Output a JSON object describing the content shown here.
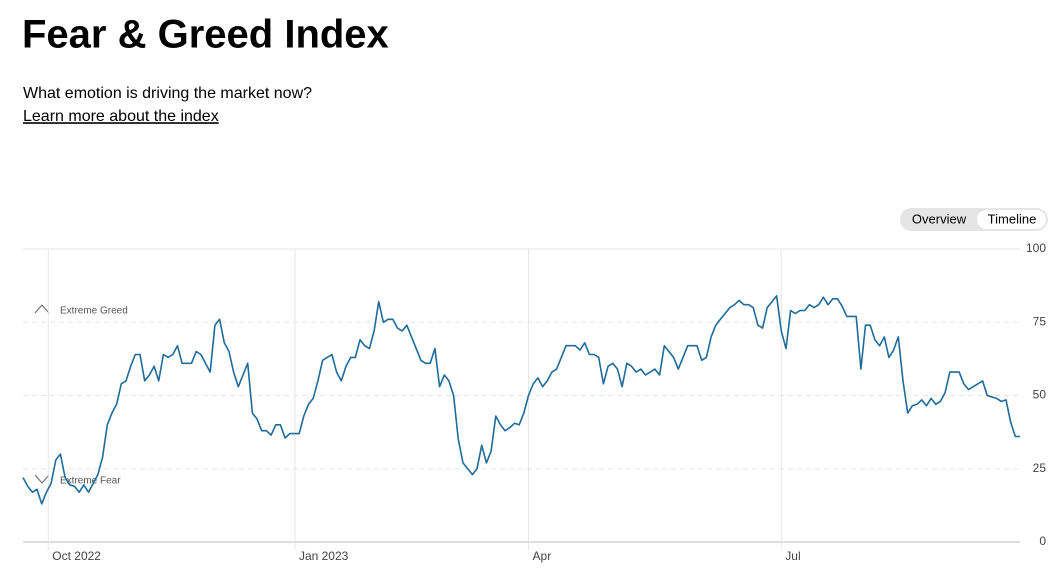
{
  "header": {
    "title": "Fear & Greed Index",
    "subtitle": "What emotion is driving the market now?",
    "link": "Learn more about the index"
  },
  "toggle": {
    "options": [
      "Overview",
      "Timeline"
    ],
    "selected": "Timeline"
  },
  "chart_data": {
    "type": "line",
    "color": "#1f6b9a",
    "grid": true,
    "annotations": [
      "Extreme Greed",
      "Extreme Fear"
    ],
    "xlim": [
      0,
      213
    ],
    "xticks": [
      {
        "value": 5.4,
        "label": "Oct 2022"
      },
      {
        "value": 58.1,
        "label": "Jan 2023"
      },
      {
        "value": 108,
        "label": "Apr"
      },
      {
        "value": 162,
        "label": "Jul"
      }
    ],
    "ylim": [
      0,
      100
    ],
    "yticks": [
      0,
      25,
      50,
      75,
      100
    ],
    "values": [
      22,
      19,
      17,
      18,
      13,
      17,
      20,
      28,
      30,
      22,
      19.5,
      19,
      17,
      19.5,
      17,
      20,
      23,
      29,
      40,
      44,
      47,
      54,
      55,
      60,
      64,
      64,
      55,
      57,
      60,
      55,
      64,
      63,
      64,
      67,
      61,
      61,
      61,
      65,
      64,
      61,
      58,
      74,
      76,
      68,
      65,
      58,
      53,
      57,
      61,
      44,
      42,
      38,
      38,
      36.5,
      40,
      40,
      35.5,
      37,
      37,
      37,
      43,
      47,
      49,
      55,
      62,
      63,
      64,
      58,
      55,
      60,
      63,
      63,
      69,
      67,
      66,
      72,
      82,
      75,
      76,
      76,
      73,
      72,
      74,
      70,
      66,
      62,
      61,
      61,
      66,
      53,
      57,
      55,
      50,
      35,
      27,
      25,
      23,
      25,
      33,
      27,
      31,
      43,
      40,
      38,
      39,
      40.5,
      40,
      44,
      50,
      54,
      56,
      53,
      55,
      58,
      59,
      63,
      67,
      67,
      67,
      65.5,
      68,
      64,
      64,
      63,
      54,
      60,
      61,
      59,
      53,
      61,
      60,
      58,
      59,
      57,
      58,
      59,
      57,
      67,
      65,
      63,
      59,
      63,
      67,
      67,
      67,
      62,
      63,
      70,
      74,
      76,
      78,
      80,
      81,
      82.5,
      81,
      81,
      80,
      74,
      73,
      80,
      82,
      84,
      72,
      66,
      79,
      78,
      79,
      79,
      81,
      80,
      81,
      83.5,
      81,
      83,
      83,
      80.5,
      77,
      77,
      77,
      59,
      74,
      74,
      69,
      67,
      70,
      63,
      65.5,
      70,
      55,
      44,
      46.5,
      47,
      48.5,
      46.5,
      49,
      47,
      48,
      51,
      58,
      58,
      58,
      54,
      52,
      53,
      54,
      55,
      50,
      49.5,
      49,
      48,
      48.5,
      41,
      36,
      36
    ]
  }
}
